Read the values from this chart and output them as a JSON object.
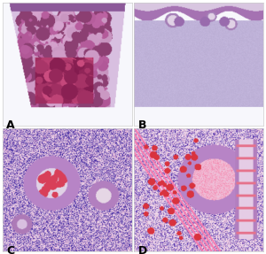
{
  "figure_width": 3.0,
  "figure_height": 2.87,
  "dpi": 100,
  "background_color": "#ffffff",
  "border_color": "#cccccc",
  "labels": [
    "A",
    "B",
    "C",
    "D"
  ],
  "label_fontsize": 9,
  "label_color": "#000000",
  "grid_rows": 2,
  "grid_cols": 2,
  "linewidth": 0.5
}
